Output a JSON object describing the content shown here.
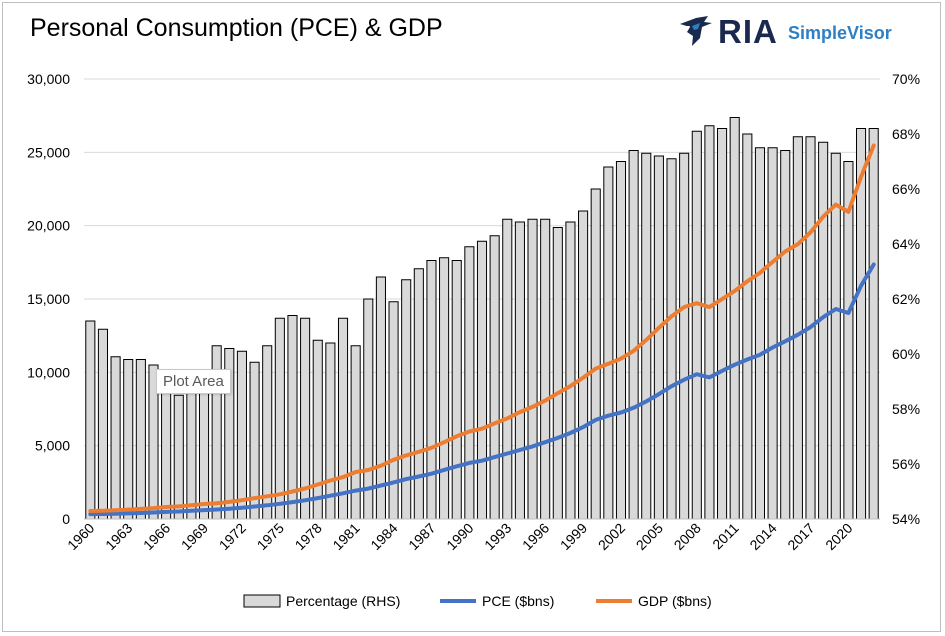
{
  "title": "Personal Consumption (PCE) & GDP",
  "brand": {
    "logo_text": "RIA",
    "product_text": "SimpleVisor",
    "mark_icon": "eagle-logo-icon"
  },
  "tooltip": "Plot Area",
  "colors": {
    "bar_fill": "#d9d9d9",
    "bar_stroke": "#000000",
    "pce": "#4472c4",
    "gdp": "#ed7d31",
    "gridline": "#d9d9d9"
  },
  "chart_data": {
    "type": "bar",
    "title": "Personal Consumption (PCE) & GDP",
    "x": [
      1960,
      1961,
      1962,
      1963,
      1964,
      1965,
      1966,
      1967,
      1968,
      1969,
      1970,
      1971,
      1972,
      1973,
      1974,
      1975,
      1976,
      1977,
      1978,
      1979,
      1980,
      1981,
      1982,
      1983,
      1984,
      1985,
      1986,
      1987,
      1988,
      1989,
      1990,
      1991,
      1992,
      1993,
      1994,
      1995,
      1996,
      1997,
      1998,
      1999,
      2000,
      2001,
      2002,
      2003,
      2004,
      2005,
      2006,
      2007,
      2008,
      2009,
      2010,
      2011,
      2012,
      2013,
      2014,
      2015,
      2016,
      2017,
      2018,
      2019,
      2020,
      2021,
      2022
    ],
    "x_tick_labels": [
      "1960",
      "1963",
      "1966",
      "1969",
      "1972",
      "1975",
      "1978",
      "1981",
      "1984",
      "1987",
      "1990",
      "1993",
      "1996",
      "1999",
      "2002",
      "2005",
      "2008",
      "2011",
      "2014",
      "2017",
      "2020"
    ],
    "left_axis": {
      "ylim": [
        0,
        30000
      ],
      "ticks": [
        0,
        5000,
        10000,
        15000,
        20000,
        25000,
        30000
      ],
      "tick_labels": [
        "0",
        "5,000",
        "10,000",
        "15,000",
        "20,000",
        "25,000",
        "30,000"
      ]
    },
    "right_axis": {
      "ylim": [
        54,
        70
      ],
      "ticks": [
        54,
        56,
        58,
        60,
        62,
        64,
        66,
        68,
        70
      ],
      "tick_labels": [
        "54%",
        "56%",
        "58%",
        "60%",
        "62%",
        "64%",
        "66%",
        "68%",
        "70%"
      ]
    },
    "grid": true,
    "legend_position": "bottom",
    "series": [
      {
        "name": "Percentage (RHS)",
        "type": "bar",
        "axis": "right",
        "values": [
          61.2,
          60.9,
          59.9,
          59.8,
          59.8,
          59.6,
          58.8,
          58.5,
          58.9,
          58.9,
          60.3,
          60.2,
          60.1,
          59.7,
          60.3,
          61.3,
          61.4,
          61.3,
          60.5,
          60.4,
          61.3,
          60.3,
          62.0,
          62.8,
          61.9,
          62.7,
          63.1,
          63.4,
          63.5,
          63.4,
          63.9,
          64.1,
          64.3,
          64.9,
          64.8,
          64.9,
          64.9,
          64.6,
          64.8,
          65.2,
          66.0,
          66.8,
          67.0,
          67.4,
          67.3,
          67.2,
          67.1,
          67.3,
          68.1,
          68.3,
          68.2,
          68.6,
          68.0,
          67.5,
          67.5,
          67.4,
          67.9,
          67.9,
          67.7,
          67.3,
          67.0,
          68.2,
          68.2
        ]
      },
      {
        "name": "PCE ($bns)",
        "type": "line",
        "axis": "left",
        "values": [
          331,
          342,
          363,
          383,
          411,
          444,
          481,
          510,
          558,
          606,
          647,
          701,
          770,
          852,
          933,
          1034,
          1151,
          1278,
          1428,
          1592,
          1755,
          1938,
          2074,
          2287,
          2498,
          2723,
          2898,
          3092,
          3347,
          3593,
          3826,
          3977,
          4222,
          4464,
          4704,
          4952,
          5233,
          5532,
          5861,
          6263,
          6757,
          7042,
          7258,
          7582,
          8017,
          8514,
          9055,
          9496,
          9876,
          9654,
          10096,
          10522,
          10876,
          11203,
          11690,
          12117,
          12563,
          13087,
          13761,
          14319,
          14048,
          15903,
          17351
        ]
      },
      {
        "name": "GDP ($bns)",
        "type": "line",
        "axis": "left",
        "values": [
          543,
          564,
          603,
          638,
          686,
          743,
          815,
          861,
          943,
          1020,
          1073,
          1165,
          1280,
          1425,
          1545,
          1685,
          1873,
          2082,
          2352,
          2627,
          2857,
          3207,
          3343,
          3634,
          4037,
          4339,
          4580,
          4855,
          5236,
          5642,
          5963,
          6158,
          6520,
          6859,
          7287,
          7640,
          8073,
          8578,
          9063,
          9631,
          10252,
          10582,
          10936,
          11458,
          12214,
          13037,
          13815,
          14452,
          14713,
          14449,
          14992,
          15543,
          16197,
          16785,
          17527,
          18238,
          18745,
          19543,
          20612,
          21433,
          20937,
          23315,
          25464
        ]
      }
    ]
  }
}
